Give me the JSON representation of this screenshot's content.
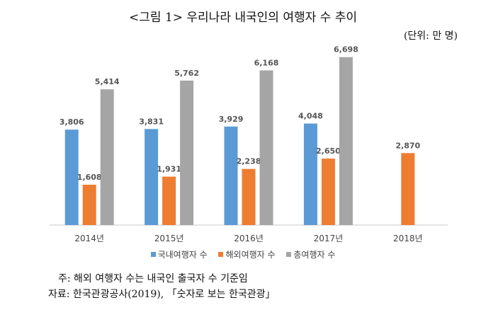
{
  "title": "<그림 1> 우리나라 내국인의 여행자 수 추이",
  "unit": "(단위: 만 명)",
  "note": "주: 해외 여행자 수는 내국인 출국자 수 기준임",
  "source": "자료: 한국관광공사(2019), 「숫자로 보는 한국관광」",
  "chart_data": {
    "type": "bar",
    "categories": [
      "2014년",
      "2015년",
      "2016년",
      "2017년",
      "2018년"
    ],
    "series": [
      {
        "name": "국내여행자 수",
        "values": [
          3806,
          3831,
          3929,
          4048,
          null
        ],
        "labels": [
          "3,806",
          "3,831",
          "3,929",
          "4,048",
          ""
        ],
        "color": "#5b9bd5"
      },
      {
        "name": "해외여행자 수",
        "values": [
          1608,
          1931,
          2238,
          2650,
          2870
        ],
        "labels": [
          "1,608",
          "1,931",
          "2,238",
          "2,650",
          "2,870"
        ],
        "color": "#ed7d31"
      },
      {
        "name": "총여행자 수",
        "values": [
          5414,
          5762,
          6168,
          6698,
          null
        ],
        "labels": [
          "5,414",
          "5,762",
          "6,168",
          "6,698",
          ""
        ],
        "color": "#a5a5a5"
      }
    ],
    "ylim": [
      0,
      7000
    ],
    "grid": false,
    "legend": "bottom"
  }
}
